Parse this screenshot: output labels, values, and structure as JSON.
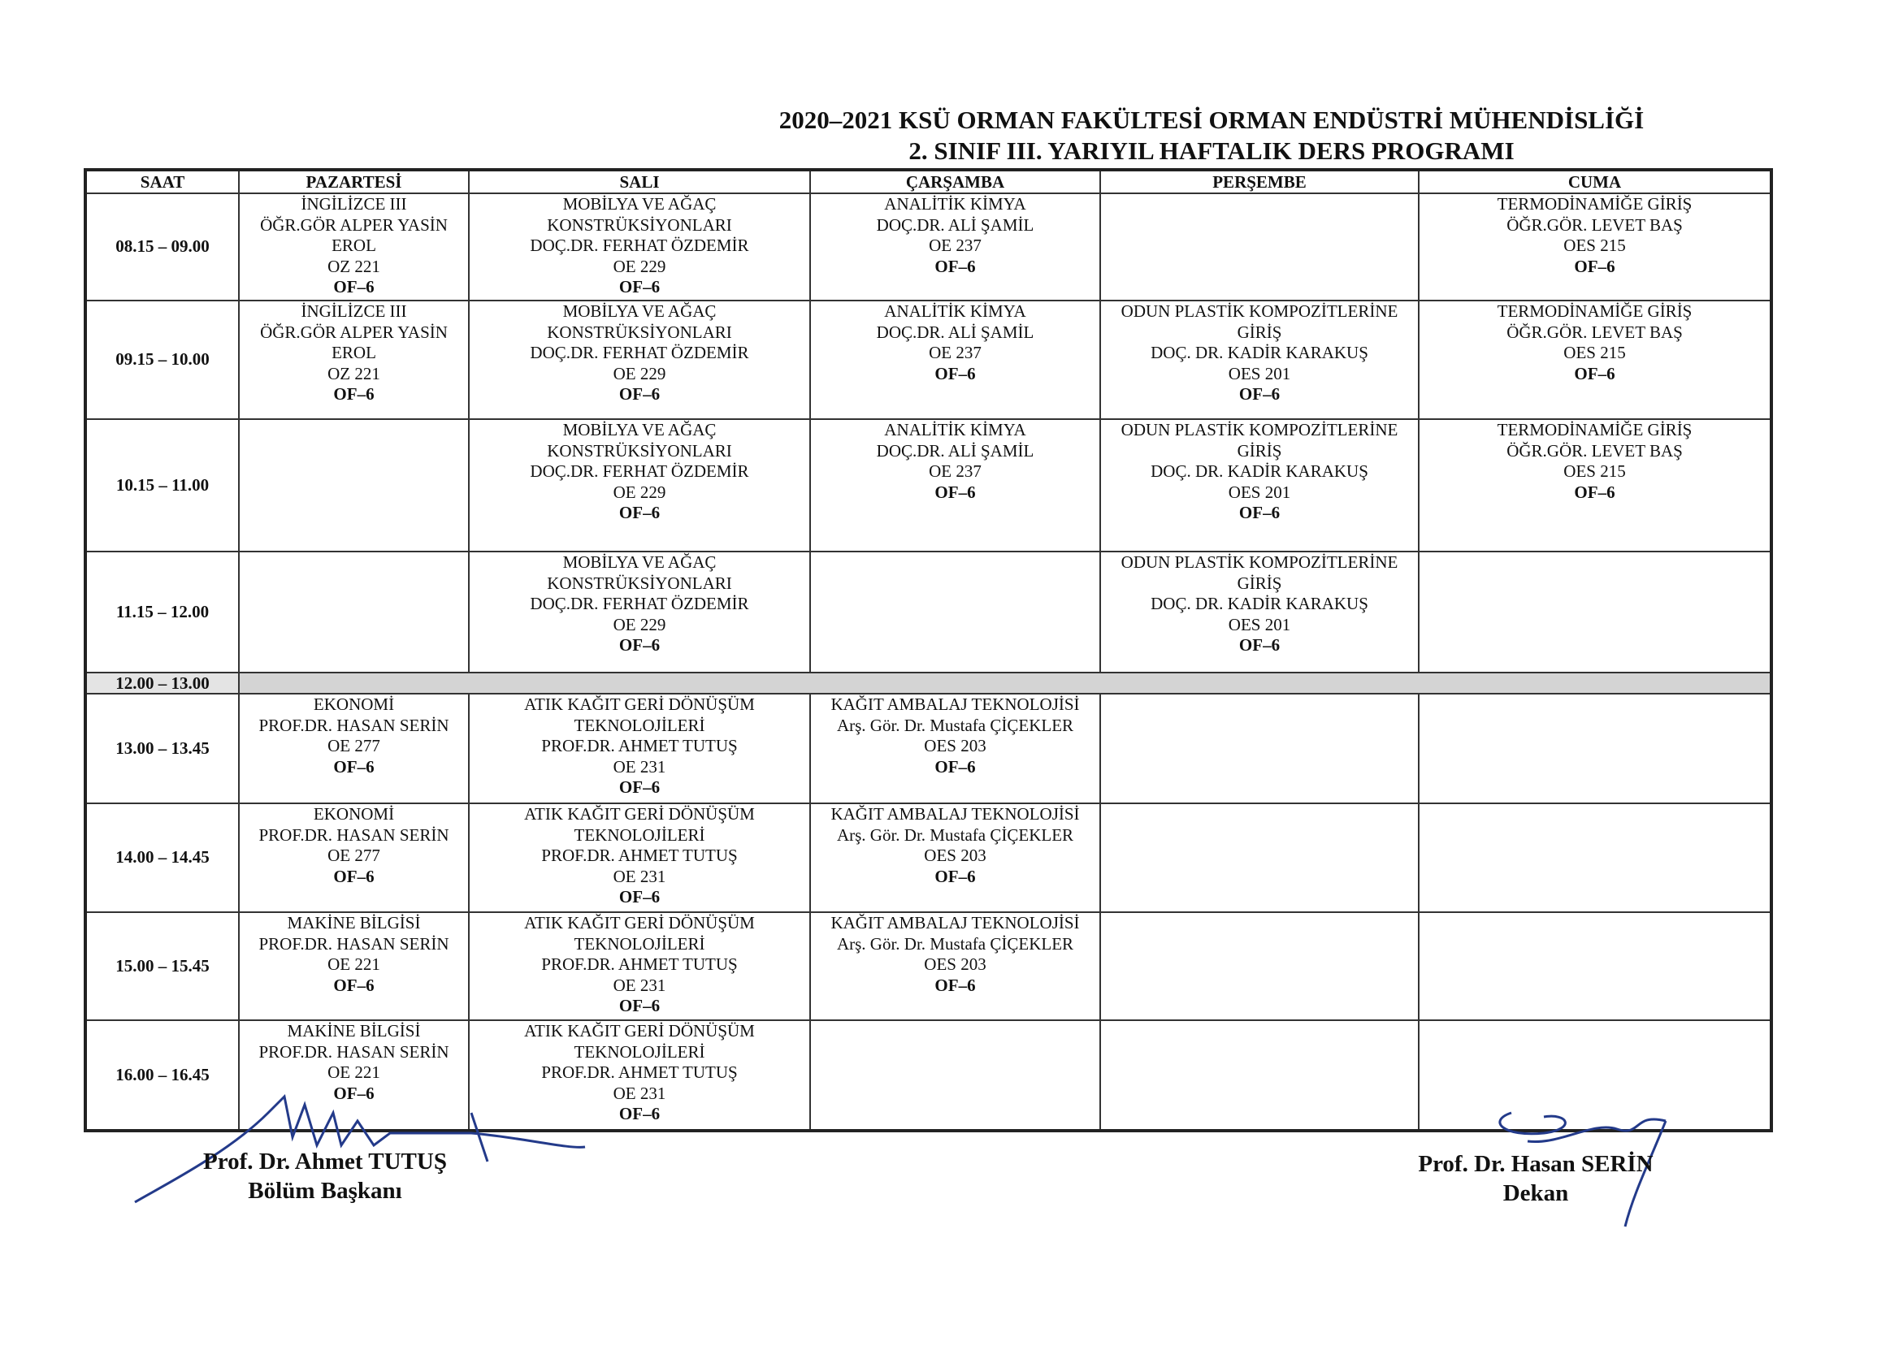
{
  "title": {
    "line1": "2020–2021 KSÜ ORMAN FAKÜLTESİ ORMAN ENDÜSTRİ MÜHENDİSLİĞİ",
    "line2": "2. SINIF III. YARIYIL HAFTALIK DERS PROGRAMI"
  },
  "columns": [
    "SAAT",
    "PAZARTESİ",
    "SALI",
    "ÇARŞAMBA",
    "PERŞEMBE",
    "CUMA"
  ],
  "rows": [
    {
      "time": "08.15 – 09.00",
      "cells": [
        {
          "lines": [
            "İNGİLİZCE III",
            "ÖĞR.GÖR ALPER YASİN",
            "EROL",
            "OZ 221"
          ],
          "code": "OF–6"
        },
        {
          "lines": [
            "MOBİLYA VE AĞAÇ",
            "KONSTRÜKSİYONLARI",
            "DOÇ.DR. FERHAT ÖZDEMİR",
            "OE 229"
          ],
          "code": "OF–6"
        },
        {
          "lines": [
            "ANALİTİK KİMYA",
            "DOÇ.DR. ALİ ŞAMİL",
            "OE 237"
          ],
          "code": "OF–6"
        },
        {
          "lines": [],
          "code": ""
        },
        {
          "lines": [
            "TERMODİNAMİĞE GİRİŞ",
            "ÖĞR.GÖR. LEVET BAŞ",
            "OES 215"
          ],
          "code": "OF–6"
        }
      ]
    },
    {
      "time": "09.15 – 10.00",
      "cells": [
        {
          "lines": [
            "İNGİLİZCE III",
            "ÖĞR.GÖR ALPER YASİN",
            "EROL",
            "OZ 221"
          ],
          "code": "OF–6"
        },
        {
          "lines": [
            "MOBİLYA VE AĞAÇ",
            "KONSTRÜKSİYONLARI",
            "DOÇ.DR. FERHAT ÖZDEMİR",
            "OE 229"
          ],
          "code": "OF–6"
        },
        {
          "lines": [
            "ANALİTİK KİMYA",
            "DOÇ.DR. ALİ ŞAMİL",
            "OE 237"
          ],
          "code": "OF–6"
        },
        {
          "lines": [
            "ODUN PLASTİK KOMPOZİTLERİNE",
            "GİRİŞ",
            "DOÇ. DR.  KADİR KARAKUŞ",
            "OES 201"
          ],
          "code": "OF–6"
        },
        {
          "lines": [
            "TERMODİNAMİĞE GİRİŞ",
            "ÖĞR.GÖR. LEVET BAŞ",
            "OES 215"
          ],
          "code": "OF–6"
        }
      ]
    },
    {
      "time": "10.15 – 11.00",
      "cells": [
        {
          "lines": [],
          "code": ""
        },
        {
          "lines": [
            "MOBİLYA VE AĞAÇ",
            "KONSTRÜKSİYONLARI",
            "DOÇ.DR. FERHAT ÖZDEMİR",
            "OE 229"
          ],
          "code": "OF–6"
        },
        {
          "lines": [
            "ANALİTİK KİMYA",
            "DOÇ.DR. ALİ ŞAMİL",
            "OE 237"
          ],
          "code": "OF–6"
        },
        {
          "lines": [
            "ODUN PLASTİK KOMPOZİTLERİNE",
            "GİRİŞ",
            "DOÇ. DR. KADİR KARAKUŞ",
            "OES 201"
          ],
          "code": "OF–6"
        },
        {
          "lines": [
            "TERMODİNAMİĞE GİRİŞ",
            "ÖĞR.GÖR. LEVET BAŞ",
            "OES 215"
          ],
          "code": "OF–6"
        }
      ]
    },
    {
      "time": "11.15 – 12.00",
      "cells": [
        {
          "lines": [],
          "code": ""
        },
        {
          "lines": [
            "MOBİLYA VE AĞAÇ",
            "KONSTRÜKSİYONLARI",
            "DOÇ.DR. FERHAT ÖZDEMİR",
            "OE 229"
          ],
          "code": "OF–6"
        },
        {
          "lines": [],
          "code": ""
        },
        {
          "lines": [
            "ODUN PLASTİK KOMPOZİTLERİNE",
            "GİRİŞ",
            "DOÇ. DR. KADİR KARAKUŞ",
            "OES 201"
          ],
          "code": "OF–6"
        },
        {
          "lines": [],
          "code": ""
        }
      ]
    },
    {
      "time": "12.00 – 13.00",
      "lunch": true,
      "cells": []
    },
    {
      "time": "13.00 – 13.45",
      "cells": [
        {
          "lines": [
            "EKONOMİ",
            "PROF.DR. HASAN SERİN",
            "OE 277"
          ],
          "code": "OF–6"
        },
        {
          "lines": [
            "ATIK KAĞIT GERİ DÖNÜŞÜM",
            "TEKNOLOJİLERİ",
            "PROF.DR. AHMET TUTUŞ",
            "OE 231"
          ],
          "code": "OF–6"
        },
        {
          "lines": [
            "KAĞIT AMBALAJ TEKNOLOJİSİ",
            "Arş. Gör. Dr. Mustafa ÇİÇEKLER",
            "OES 203"
          ],
          "code": "OF–6"
        },
        {
          "lines": [],
          "code": ""
        },
        {
          "lines": [],
          "code": ""
        }
      ]
    },
    {
      "time": "14.00 – 14.45",
      "cells": [
        {
          "lines": [
            "EKONOMİ",
            "PROF.DR. HASAN SERİN",
            "OE 277"
          ],
          "code": "OF–6"
        },
        {
          "lines": [
            "ATIK KAĞIT GERİ DÖNÜŞÜM",
            "TEKNOLOJİLERİ",
            "PROF.DR. AHMET TUTUŞ",
            "OE 231"
          ],
          "code": "OF–6"
        },
        {
          "lines": [
            "KAĞIT AMBALAJ TEKNOLOJİSİ",
            "Arş. Gör. Dr. Mustafa ÇİÇEKLER",
            "OES 203"
          ],
          "code": "OF–6"
        },
        {
          "lines": [],
          "code": ""
        },
        {
          "lines": [],
          "code": ""
        }
      ]
    },
    {
      "time": "15.00 – 15.45",
      "cells": [
        {
          "lines": [
            "MAKİNE BİLGİSİ",
            "PROF.DR. HASAN SERİN",
            "OE 221"
          ],
          "code": "OF–6"
        },
        {
          "lines": [
            "ATIK KAĞIT GERİ DÖNÜŞÜM",
            "TEKNOLOJİLERİ",
            "PROF.DR. AHMET TUTUŞ",
            "OE 231"
          ],
          "code": "OF–6"
        },
        {
          "lines": [
            "KAĞIT AMBALAJ TEKNOLOJİSİ",
            "Arş. Gör. Dr. Mustafa ÇİÇEKLER",
            "OES 203"
          ],
          "code": "OF–6"
        },
        {
          "lines": [],
          "code": ""
        },
        {
          "lines": [],
          "code": ""
        }
      ]
    },
    {
      "time": "16.00 – 16.45",
      "cells": [
        {
          "lines": [
            "MAKİNE BİLGİSİ",
            "PROF.DR. HASAN SERİN",
            "OE 221"
          ],
          "code": "OF–6"
        },
        {
          "lines": [
            "ATIK KAĞIT GERİ DÖNÜŞÜM",
            "TEKNOLOJİLERİ",
            "PROF.DR. AHMET TUTUŞ",
            "OE 231"
          ],
          "code": "OF–6"
        },
        {
          "lines": [],
          "code": ""
        },
        {
          "lines": [],
          "code": ""
        },
        {
          "lines": [],
          "code": ""
        }
      ]
    }
  ],
  "signatures": {
    "left": {
      "name": "Prof. Dr. Ahmet TUTUŞ",
      "role": "Bölüm Başkanı"
    },
    "right": {
      "name": "Prof. Dr. Hasan SERİN",
      "role": "Dekan"
    }
  }
}
